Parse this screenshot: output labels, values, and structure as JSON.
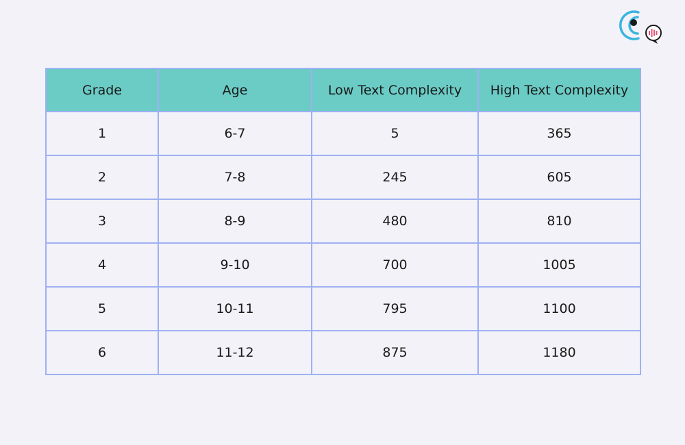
{
  "table": {
    "headers": [
      "Grade",
      "Age",
      "Low Text Complexity",
      "High Text Complexity"
    ],
    "rows": [
      [
        "1",
        "6-7",
        "5",
        "365"
      ],
      [
        "2",
        "7-8",
        "245",
        "605"
      ],
      [
        "3",
        "8-9",
        "480",
        "810"
      ],
      [
        "4",
        "9-10",
        "700",
        "1005"
      ],
      [
        "5",
        "10-11",
        "795",
        "1100"
      ],
      [
        "6",
        "11-12",
        "875",
        "1180"
      ]
    ]
  },
  "colors": {
    "background": "#f2f2f8",
    "header_fill": "#6bcbc5",
    "border": "#9fb0f3",
    "logo_blue": "#3ab4e0",
    "logo_pink": "#e8507a"
  },
  "logo": {
    "icon": "broadcast-speech-bubble-logo"
  }
}
